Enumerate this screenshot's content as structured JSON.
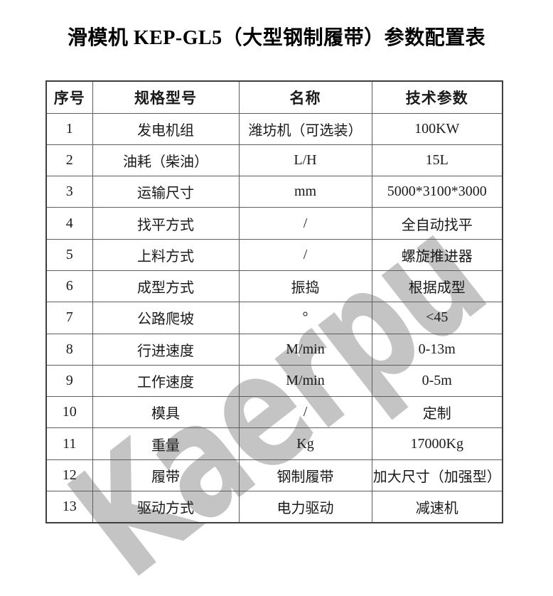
{
  "title": "滑模机 KEP-GL5（大型钢制履带）参数配置表",
  "watermark": {
    "text": "Kaerpu",
    "color": "#c4c4c4"
  },
  "table": {
    "headers": [
      "序号",
      "规格型号",
      "名称",
      "技术参数"
    ],
    "rows": [
      [
        "1",
        "发电机组",
        "潍坊机（可选装）",
        "100KW"
      ],
      [
        "2",
        "油耗（柴油）",
        "L/H",
        "15L"
      ],
      [
        "3",
        "运输尺寸",
        "mm",
        "5000*3100*3000"
      ],
      [
        "4",
        "找平方式",
        "/",
        "全自动找平"
      ],
      [
        "5",
        "上料方式",
        "/",
        "螺旋推进器"
      ],
      [
        "6",
        "成型方式",
        "振捣",
        "根据成型"
      ],
      [
        "7",
        "公路爬坡",
        "°",
        "<45"
      ],
      [
        "8",
        "行进速度",
        "M/min",
        "0-13m"
      ],
      [
        "9",
        "工作速度",
        "M/min",
        "0-5m"
      ],
      [
        "10",
        "模具",
        "/",
        "定制"
      ],
      [
        "11",
        "重量",
        "Kg",
        "17000Kg"
      ],
      [
        "12",
        "履带",
        "钢制履带",
        "加大尺寸（加强型）"
      ],
      [
        "13",
        "驱动方式",
        "电力驱动",
        "减速机"
      ]
    ]
  }
}
